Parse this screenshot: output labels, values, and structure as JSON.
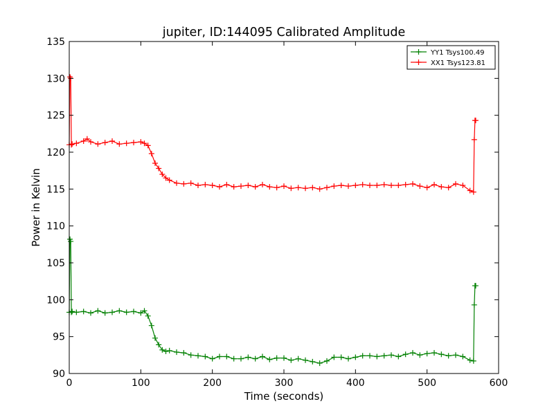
{
  "chart_data": {
    "type": "line",
    "title": "jupiter, ID:144095 Calibrated Amplitude",
    "xlabel": "Time (seconds)",
    "ylabel": "Power in Kelvin",
    "xlim": [
      0,
      600
    ],
    "ylim": [
      90,
      135
    ],
    "xticks": [
      0,
      100,
      200,
      300,
      400,
      500,
      600
    ],
    "yticks": [
      90,
      95,
      100,
      105,
      110,
      115,
      120,
      125,
      130,
      135
    ],
    "grid": false,
    "legend_position": "top-right",
    "series": [
      {
        "name": "YY1 Tsys100.49",
        "color": "#008000",
        "marker": "+",
        "x": [
          0,
          1,
          2,
          3,
          4,
          10,
          20,
          30,
          40,
          50,
          60,
          70,
          80,
          90,
          100,
          105,
          110,
          115,
          120,
          125,
          130,
          135,
          140,
          150,
          160,
          170,
          180,
          190,
          200,
          210,
          220,
          230,
          240,
          250,
          260,
          270,
          280,
          290,
          300,
          310,
          320,
          330,
          340,
          350,
          360,
          370,
          380,
          390,
          400,
          410,
          420,
          430,
          440,
          450,
          460,
          470,
          480,
          490,
          500,
          510,
          520,
          530,
          540,
          550,
          560,
          565,
          566,
          567,
          568
        ],
        "values": [
          98.3,
          108.2,
          107.9,
          98.3,
          98.4,
          98.3,
          98.4,
          98.2,
          98.5,
          98.2,
          98.3,
          98.5,
          98.3,
          98.4,
          98.2,
          98.5,
          97.8,
          96.5,
          94.8,
          93.9,
          93.2,
          93.0,
          93.1,
          92.9,
          92.8,
          92.5,
          92.4,
          92.3,
          92.0,
          92.3,
          92.3,
          92.0,
          92.0,
          92.2,
          92.0,
          92.3,
          91.9,
          92.1,
          92.1,
          91.8,
          92.0,
          91.8,
          91.6,
          91.4,
          91.7,
          92.2,
          92.2,
          92.0,
          92.2,
          92.4,
          92.4,
          92.3,
          92.4,
          92.5,
          92.3,
          92.6,
          92.8,
          92.5,
          92.7,
          92.8,
          92.6,
          92.4,
          92.5,
          92.3,
          91.8,
          91.7,
          99.3,
          101.9,
          101.9
        ]
      },
      {
        "name": "XX1 Tsys123.81",
        "color": "#ff0000",
        "marker": "+",
        "x": [
          0,
          1,
          2,
          3,
          4,
          10,
          20,
          25,
          30,
          40,
          50,
          60,
          70,
          80,
          90,
          100,
          105,
          110,
          115,
          120,
          125,
          130,
          135,
          140,
          150,
          160,
          170,
          180,
          190,
          200,
          210,
          220,
          230,
          240,
          250,
          260,
          270,
          280,
          290,
          300,
          310,
          320,
          330,
          340,
          350,
          360,
          370,
          380,
          390,
          400,
          410,
          420,
          430,
          440,
          450,
          460,
          470,
          480,
          490,
          500,
          510,
          520,
          530,
          540,
          550,
          560,
          565,
          566,
          567,
          568
        ],
        "values": [
          121.0,
          130.2,
          130.0,
          121.0,
          121.1,
          121.2,
          121.5,
          121.8,
          121.4,
          121.1,
          121.3,
          121.5,
          121.1,
          121.2,
          121.3,
          121.4,
          121.2,
          120.9,
          119.8,
          118.5,
          117.8,
          117.0,
          116.5,
          116.2,
          115.8,
          115.7,
          115.8,
          115.5,
          115.6,
          115.5,
          115.3,
          115.6,
          115.3,
          115.4,
          115.5,
          115.3,
          115.6,
          115.3,
          115.2,
          115.4,
          115.1,
          115.2,
          115.1,
          115.2,
          115.0,
          115.2,
          115.4,
          115.5,
          115.4,
          115.5,
          115.6,
          115.5,
          115.5,
          115.6,
          115.5,
          115.5,
          115.6,
          115.7,
          115.4,
          115.2,
          115.6,
          115.3,
          115.2,
          115.7,
          115.5,
          114.8,
          114.6,
          121.7,
          124.3,
          124.3
        ]
      }
    ]
  }
}
